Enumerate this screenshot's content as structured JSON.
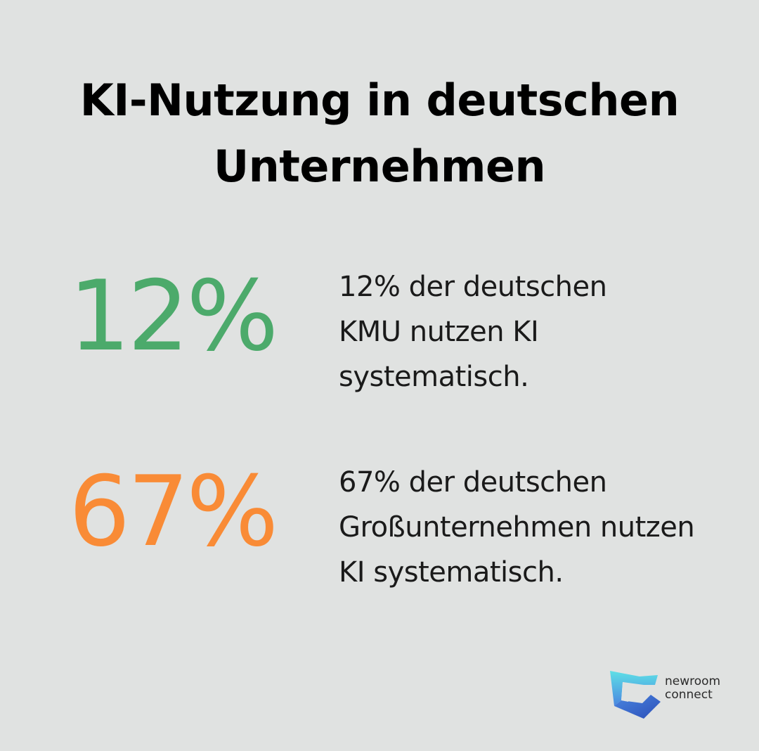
{
  "title": "KI-Nutzung in deutschen Unternehmen",
  "stats": [
    {
      "value": "12%",
      "color": "#4caa6b",
      "description": "12% der deutschen KMU nutzen KI systematisch."
    },
    {
      "value": "67%",
      "color": "#f98b36",
      "description": "67% der deutschen Großunternehmen nutzen KI systematisch."
    }
  ],
  "logo": {
    "line1": "newroom",
    "line2": "connect",
    "icon": "newroom-connect-logo-icon",
    "colors": [
      "#5ee0e6",
      "#4a86e0",
      "#2c4fb8"
    ]
  }
}
